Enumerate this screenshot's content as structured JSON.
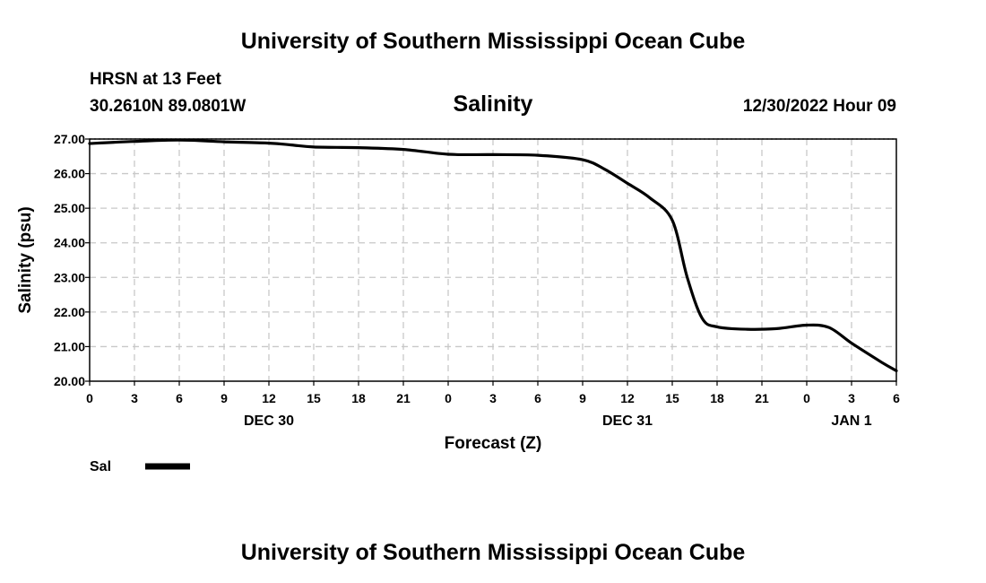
{
  "page": {
    "title_top": "University of Southern Mississippi Ocean Cube",
    "title_bottom": "University of Southern Mississippi Ocean Cube",
    "station": "HRSN at 13 Feet",
    "coordinates": "30.2610N  89.0801W",
    "chart_title": "Salinity",
    "timestamp": "12/30/2022 Hour 09",
    "legend_label": "Sal",
    "line_color": "#000000",
    "grid_color": "#c8c8c8"
  },
  "chart_data": {
    "type": "line",
    "title": "Salinity",
    "xlabel": "Forecast (Z)",
    "ylabel": "Salinity (psu)",
    "xlim": [
      0,
      54
    ],
    "ylim": [
      20,
      27
    ],
    "x_tick_labels": [
      "0",
      "3",
      "6",
      "9",
      "12",
      "15",
      "18",
      "21",
      "0",
      "3",
      "6",
      "9",
      "12",
      "15",
      "18",
      "21",
      "0",
      "3",
      "6"
    ],
    "y_tick_labels": [
      "27.00",
      "26.00",
      "25.00",
      "24.00",
      "23.00",
      "22.00",
      "21.00",
      "20.00"
    ],
    "y_tick_values": [
      27,
      26,
      25,
      24,
      23,
      22,
      21,
      20
    ],
    "date_labels": [
      {
        "label": "DEC 30",
        "x": 12
      },
      {
        "label": "DEC 31",
        "x": 36
      },
      {
        "label": "JAN 1",
        "x": 51
      }
    ],
    "grid": true,
    "series": [
      {
        "name": "Sal",
        "x": [
          0,
          3,
          6,
          9,
          12,
          13.5,
          15,
          18,
          21,
          24,
          27,
          30,
          33,
          34.5,
          36,
          37.5,
          39,
          40,
          41,
          42,
          44,
          46,
          48,
          49.5,
          51,
          53,
          54
        ],
        "values": [
          26.87,
          26.93,
          26.97,
          26.92,
          26.88,
          26.83,
          26.77,
          26.75,
          26.7,
          26.56,
          26.55,
          26.53,
          26.4,
          26.12,
          25.72,
          25.3,
          24.65,
          23.0,
          21.82,
          21.57,
          21.5,
          21.52,
          21.62,
          21.55,
          21.1,
          20.55,
          20.3
        ]
      }
    ]
  }
}
